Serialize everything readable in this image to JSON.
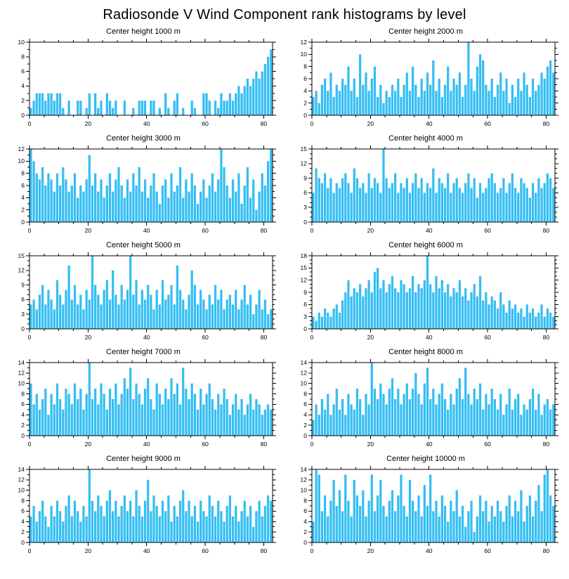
{
  "page_title": "Radiosonde V Wind Component rank histograms by level",
  "bar_color": "#35BEF3",
  "axis_color": "#000000",
  "chart_data": [
    {
      "type": "bar",
      "title": "Center height 1000 m",
      "xlabel": "",
      "ylabel": "",
      "xlim": [
        0,
        83
      ],
      "x_major_ticks": [
        0,
        20,
        40,
        60,
        80
      ],
      "x_minor_step": 5,
      "ylim": [
        0,
        10
      ],
      "ytick_step": 2,
      "values": [
        1,
        2,
        3,
        3,
        3,
        2,
        3,
        3,
        2,
        3,
        3,
        1,
        0,
        2,
        0,
        0,
        2,
        2,
        0,
        1,
        3,
        0,
        3,
        1,
        2,
        0,
        3,
        2,
        1,
        2,
        0,
        0,
        2,
        0,
        0,
        1,
        0,
        2,
        2,
        2,
        0,
        2,
        2,
        0,
        1,
        0,
        3,
        1,
        0,
        2,
        3,
        0,
        1,
        0,
        0,
        2,
        1,
        0,
        0,
        3,
        3,
        2,
        0,
        2,
        1,
        3,
        2,
        2,
        3,
        2,
        3,
        4,
        3,
        4,
        5,
        4,
        5,
        6,
        5,
        6,
        7,
        8,
        9
      ]
    },
    {
      "type": "bar",
      "title": "Center height 2000 m",
      "xlabel": "",
      "ylabel": "",
      "xlim": [
        0,
        83
      ],
      "x_major_ticks": [
        0,
        20,
        40,
        60,
        80
      ],
      "x_minor_step": 5,
      "ylim": [
        0,
        12
      ],
      "ytick_step": 2,
      "values": [
        3,
        4,
        2,
        5,
        6,
        4,
        7,
        3,
        5,
        4,
        6,
        5,
        8,
        4,
        6,
        3,
        10,
        5,
        7,
        4,
        6,
        8,
        3,
        5,
        2,
        4,
        3,
        5,
        4,
        6,
        3,
        5,
        7,
        4,
        8,
        5,
        3,
        6,
        4,
        7,
        5,
        9,
        4,
        6,
        3,
        5,
        8,
        4,
        6,
        5,
        7,
        3,
        5,
        12,
        6,
        4,
        8,
        10,
        9,
        5,
        4,
        6,
        3,
        5,
        7,
        4,
        6,
        2,
        5,
        3,
        6,
        4,
        7,
        5,
        3,
        6,
        4,
        5,
        7,
        6,
        8,
        9,
        7
      ]
    },
    {
      "type": "bar",
      "title": "Center height 3000 m",
      "xlabel": "",
      "ylabel": "",
      "xlim": [
        0,
        83
      ],
      "x_major_ticks": [
        0,
        20,
        40,
        60,
        80
      ],
      "x_minor_step": 5,
      "ylim": [
        0,
        12
      ],
      "ytick_step": 2,
      "values": [
        12,
        10,
        8,
        7,
        9,
        6,
        8,
        7,
        5,
        8,
        6,
        9,
        7,
        5,
        6,
        8,
        4,
        6,
        5,
        7,
        11,
        6,
        8,
        5,
        7,
        4,
        6,
        8,
        5,
        7,
        9,
        6,
        4,
        7,
        5,
        8,
        6,
        9,
        5,
        7,
        4,
        6,
        8,
        5,
        3,
        6,
        7,
        4,
        8,
        5,
        6,
        9,
        4,
        7,
        5,
        8,
        6,
        3,
        5,
        7,
        4,
        6,
        8,
        5,
        7,
        12,
        9,
        6,
        4,
        7,
        5,
        8,
        3,
        6,
        9,
        4,
        7,
        2,
        5,
        8,
        6,
        10,
        12
      ]
    },
    {
      "type": "bar",
      "title": "Center height 4000 m",
      "xlabel": "",
      "ylabel": "",
      "xlim": [
        0,
        83
      ],
      "x_major_ticks": [
        0,
        20,
        40,
        60,
        80
      ],
      "x_minor_step": 5,
      "ylim": [
        0,
        15
      ],
      "ytick_step": 3,
      "values": [
        6,
        11,
        9,
        8,
        10,
        7,
        9,
        6,
        8,
        7,
        9,
        10,
        8,
        6,
        11,
        9,
        7,
        8,
        6,
        10,
        7,
        9,
        8,
        6,
        15,
        9,
        7,
        8,
        10,
        6,
        8,
        7,
        9,
        6,
        8,
        10,
        7,
        9,
        6,
        8,
        7,
        11,
        6,
        9,
        8,
        7,
        10,
        6,
        8,
        9,
        7,
        6,
        8,
        10,
        7,
        9,
        5,
        8,
        6,
        7,
        9,
        10,
        8,
        6,
        7,
        9,
        6,
        8,
        10,
        7,
        6,
        9,
        8,
        7,
        5,
        8,
        6,
        9,
        7,
        8,
        10,
        9,
        7
      ]
    },
    {
      "type": "bar",
      "title": "Center height 5000 m",
      "xlabel": "",
      "ylabel": "",
      "xlim": [
        0,
        83
      ],
      "x_major_ticks": [
        0,
        20,
        40,
        60,
        80
      ],
      "x_minor_step": 5,
      "ylim": [
        0,
        15
      ],
      "ytick_step": 3,
      "values": [
        5,
        6,
        4,
        7,
        9,
        5,
        8,
        6,
        4,
        10,
        7,
        5,
        8,
        13,
        6,
        9,
        5,
        7,
        4,
        8,
        6,
        15,
        9,
        7,
        5,
        8,
        10,
        6,
        12,
        7,
        5,
        9,
        6,
        8,
        15,
        7,
        10,
        5,
        8,
        6,
        9,
        7,
        4,
        8,
        5,
        10,
        6,
        7,
        9,
        5,
        13,
        8,
        6,
        4,
        7,
        12,
        9,
        5,
        8,
        6,
        4,
        7,
        5,
        9,
        6,
        8,
        4,
        6,
        7,
        5,
        8,
        4,
        6,
        9,
        5,
        7,
        3,
        5,
        8,
        4,
        6,
        3,
        4
      ]
    },
    {
      "type": "bar",
      "title": "Center height 6000 m",
      "xlabel": "",
      "ylabel": "",
      "xlim": [
        0,
        83
      ],
      "x_major_ticks": [
        0,
        20,
        40,
        60,
        80
      ],
      "x_minor_step": 5,
      "ylim": [
        0,
        18
      ],
      "ytick_step": 3,
      "values": [
        3,
        2,
        4,
        3,
        5,
        4,
        3,
        5,
        6,
        4,
        7,
        9,
        12,
        8,
        10,
        9,
        11,
        8,
        10,
        12,
        9,
        14,
        15,
        10,
        12,
        9,
        11,
        13,
        10,
        9,
        12,
        11,
        9,
        10,
        13,
        9,
        11,
        10,
        12,
        18,
        11,
        9,
        13,
        10,
        12,
        9,
        11,
        8,
        10,
        9,
        12,
        8,
        10,
        7,
        9,
        11,
        8,
        13,
        7,
        9,
        6,
        8,
        7,
        5,
        9,
        6,
        4,
        7,
        5,
        6,
        4,
        5,
        3,
        6,
        4,
        5,
        3,
        4,
        6,
        3,
        5,
        4,
        3
      ]
    },
    {
      "type": "bar",
      "title": "Center height 7000 m",
      "xlabel": "",
      "ylabel": "",
      "xlim": [
        0,
        83
      ],
      "x_major_ticks": [
        0,
        20,
        40,
        60,
        80
      ],
      "x_minor_step": 5,
      "ylim": [
        0,
        14
      ],
      "ytick_step": 2,
      "values": [
        10,
        6,
        8,
        5,
        7,
        9,
        4,
        8,
        6,
        10,
        7,
        5,
        9,
        8,
        6,
        10,
        7,
        9,
        5,
        8,
        14,
        7,
        9,
        6,
        10,
        8,
        5,
        9,
        7,
        10,
        6,
        8,
        11,
        9,
        13,
        7,
        10,
        8,
        6,
        9,
        11,
        7,
        5,
        10,
        8,
        6,
        9,
        7,
        11,
        8,
        10,
        6,
        13,
        9,
        7,
        10,
        8,
        5,
        9,
        6,
        8,
        10,
        7,
        5,
        8,
        6,
        9,
        7,
        4,
        6,
        8,
        5,
        7,
        4,
        6,
        8,
        5,
        7,
        6,
        4,
        5,
        6,
        5
      ]
    },
    {
      "type": "bar",
      "title": "Center height 8000 m",
      "xlabel": "",
      "ylabel": "",
      "xlim": [
        0,
        83
      ],
      "x_major_ticks": [
        0,
        20,
        40,
        60,
        80
      ],
      "x_minor_step": 5,
      "ylim": [
        0,
        14
      ],
      "ytick_step": 2,
      "values": [
        3,
        6,
        4,
        7,
        5,
        8,
        4,
        6,
        9,
        5,
        7,
        4,
        8,
        6,
        5,
        9,
        7,
        4,
        8,
        6,
        14,
        9,
        7,
        10,
        8,
        6,
        9,
        11,
        7,
        9,
        6,
        8,
        10,
        7,
        9,
        12,
        8,
        6,
        10,
        13,
        7,
        9,
        6,
        8,
        10,
        7,
        5,
        8,
        6,
        9,
        11,
        7,
        13,
        8,
        6,
        9,
        7,
        10,
        5,
        8,
        6,
        9,
        7,
        5,
        8,
        4,
        6,
        9,
        5,
        7,
        8,
        4,
        6,
        5,
        7,
        9,
        5,
        8,
        4,
        6,
        7,
        5,
        6
      ]
    },
    {
      "type": "bar",
      "title": "Center height 9000 m",
      "xlabel": "",
      "ylabel": "",
      "xlim": [
        0,
        83
      ],
      "x_major_ticks": [
        0,
        20,
        40,
        60,
        80
      ],
      "x_minor_step": 5,
      "ylim": [
        0,
        14
      ],
      "ytick_step": 2,
      "values": [
        5,
        7,
        4,
        6,
        8,
        5,
        3,
        7,
        5,
        8,
        6,
        4,
        7,
        9,
        5,
        8,
        6,
        4,
        7,
        5,
        14,
        8,
        6,
        9,
        7,
        5,
        8,
        10,
        6,
        8,
        5,
        7,
        9,
        6,
        8,
        5,
        10,
        7,
        5,
        8,
        12,
        6,
        9,
        7,
        5,
        8,
        6,
        9,
        4,
        7,
        5,
        8,
        10,
        6,
        8,
        5,
        7,
        4,
        8,
        6,
        5,
        9,
        7,
        5,
        8,
        6,
        4,
        7,
        9,
        5,
        7,
        4,
        6,
        8,
        5,
        7,
        3,
        6,
        8,
        5,
        7,
        9,
        8
      ]
    },
    {
      "type": "bar",
      "title": "Center height 10000 m",
      "xlabel": "",
      "ylabel": "",
      "xlim": [
        0,
        83
      ],
      "x_major_ticks": [
        0,
        20,
        40,
        60,
        80
      ],
      "x_minor_step": 5,
      "ylim": [
        0,
        14
      ],
      "ytick_step": 2,
      "values": [
        4,
        14,
        13,
        6,
        9,
        5,
        8,
        12,
        7,
        10,
        6,
        13,
        8,
        5,
        12,
        9,
        7,
        10,
        5,
        8,
        13,
        6,
        9,
        12,
        7,
        5,
        8,
        10,
        6,
        9,
        13,
        7,
        5,
        12,
        8,
        6,
        9,
        5,
        11,
        7,
        13,
        6,
        8,
        5,
        9,
        7,
        4,
        8,
        6,
        10,
        5,
        7,
        3,
        6,
        8,
        2,
        5,
        9,
        6,
        8,
        4,
        7,
        5,
        8,
        6,
        4,
        7,
        9,
        5,
        8,
        6,
        10,
        4,
        7,
        9,
        5,
        8,
        11,
        6,
        13,
        14,
        9,
        7
      ]
    }
  ]
}
